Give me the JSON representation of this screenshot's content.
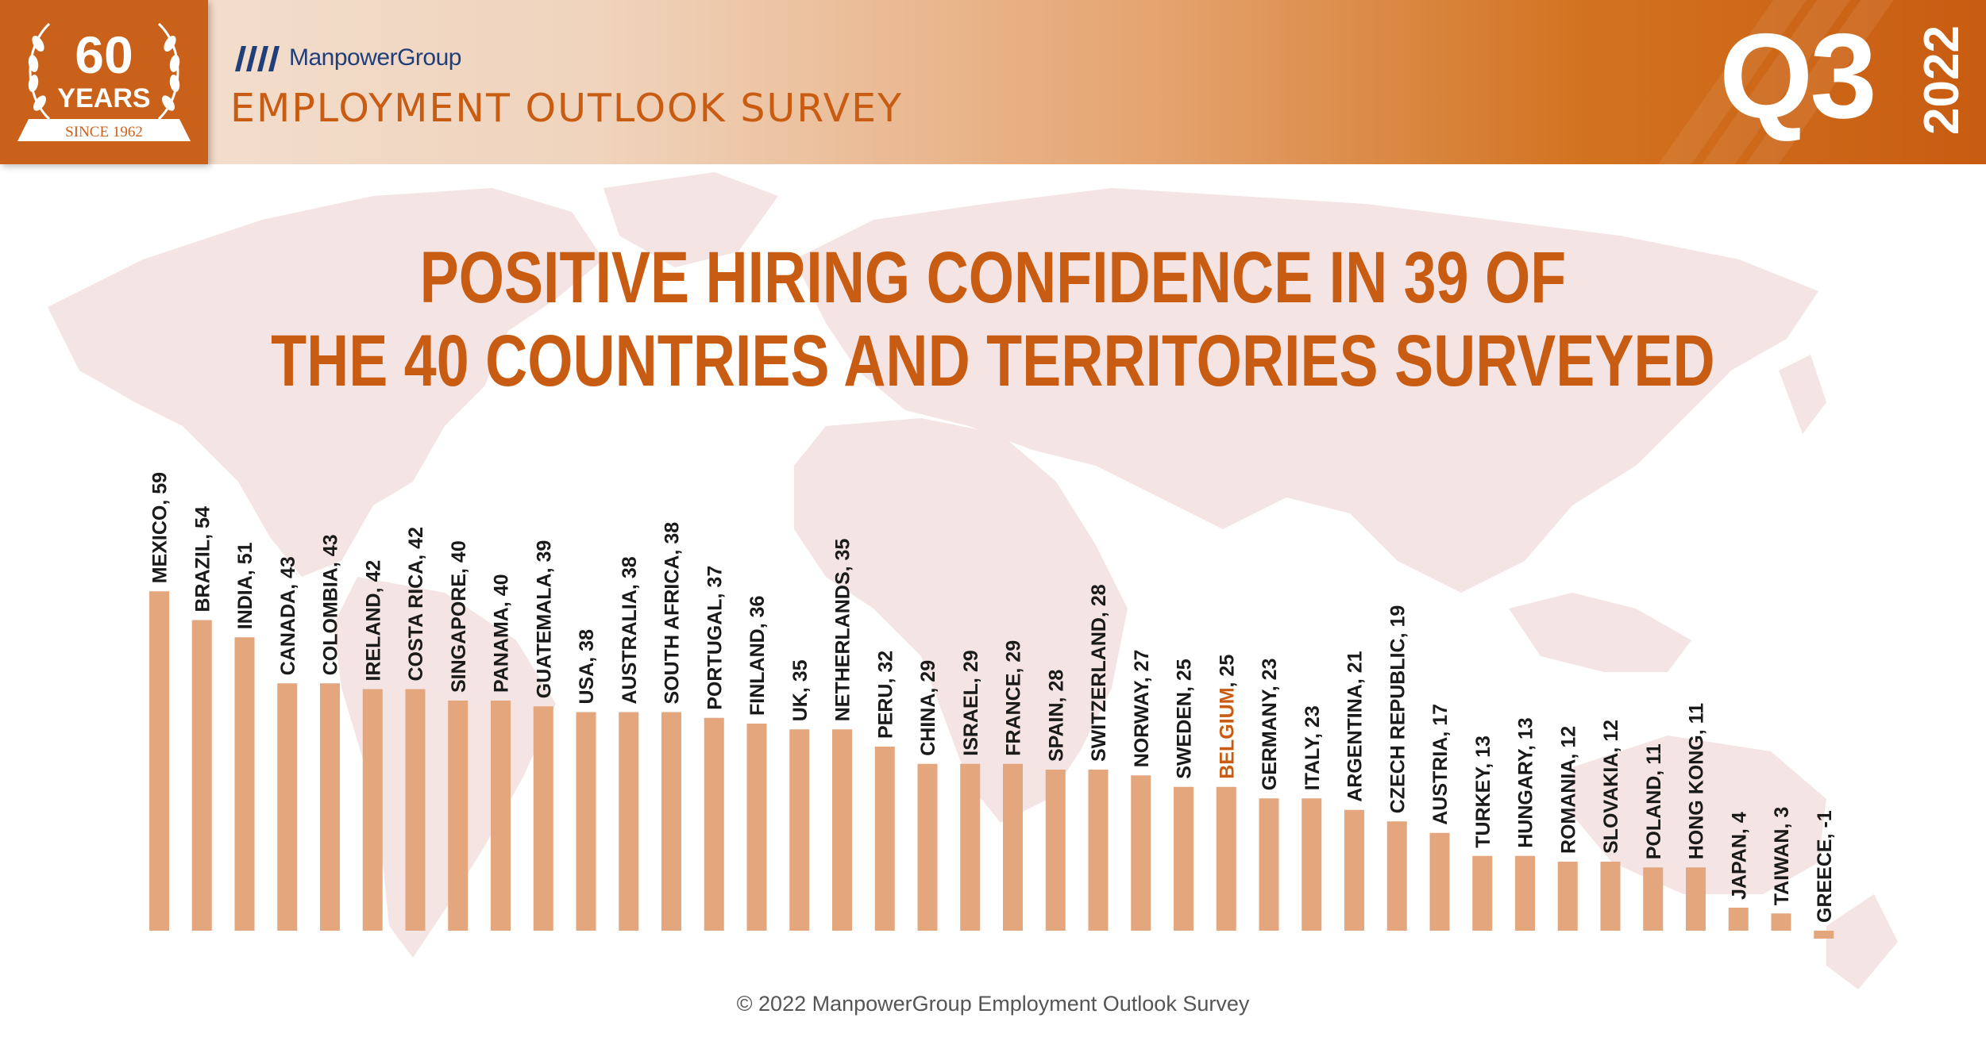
{
  "header": {
    "badge_number": "60",
    "badge_years": "YEARS",
    "badge_since": "SINCE 1962",
    "brand": "ManpowerGroup",
    "survey_title": "EMPLOYMENT OUTLOOK SURVEY",
    "quarter": "Q3",
    "year": "2022"
  },
  "colors": {
    "accent": "#c85c12",
    "bar": "#e4a67c",
    "highlight": "#c85c12",
    "map": "#f4e4e4"
  },
  "footer": "© 2022 ManpowerGroup Employment Outlook Survey",
  "chart_data": {
    "type": "bar",
    "title_lines": [
      "POSITIVE HIRING CONFIDENCE IN 39 OF",
      "THE 40 COUNTRIES AND TERRITORIES SURVEYED"
    ],
    "highlight": "BELGIUM",
    "categories": [
      "MEXICO",
      "BRAZIL",
      "INDIA",
      "CANADA",
      "COLOMBIA",
      "IRELAND",
      "COSTA RICA",
      "SINGAPORE",
      "PANAMA",
      "GUATEMALA",
      "USA",
      "AUSTRALIA",
      "SOUTH AFRICA",
      "PORTUGAL",
      "FINLAND",
      "UK",
      "NETHERLANDS",
      "PERU",
      "CHINA",
      "ISRAEL",
      "FRANCE",
      "SPAIN",
      "SWITZERLAND",
      "NORWAY",
      "SWEDEN",
      "BELGIUM",
      "GERMANY",
      "ITALY",
      "ARGENTINA",
      "CZECH REPUBLIC",
      "AUSTRIA",
      "TURKEY",
      "HUNGARY",
      "ROMANIA",
      "SLOVAKIA",
      "POLAND",
      "HONG KONG",
      "JAPAN",
      "TAIWAN",
      "GREECE"
    ],
    "values": [
      59,
      54,
      51,
      43,
      43,
      42,
      42,
      40,
      40,
      39,
      38,
      38,
      38,
      37,
      36,
      35,
      35,
      32,
      29,
      29,
      29,
      28,
      28,
      27,
      25,
      25,
      23,
      23,
      21,
      19,
      17,
      13,
      13,
      12,
      12,
      11,
      11,
      4,
      3,
      -1
    ],
    "labels": [
      "MEXICO, 59",
      "BRAZIL, 54",
      "INDIA, 51",
      "CANADA, 43",
      "COLOMBIA, 43",
      "IRELAND, 42",
      "COSTA RICA, 42",
      "SINGAPORE, 40",
      "PANAMA, 40",
      "GUATEMALA, 39",
      "USA, 38",
      "AUSTRALIA, 38",
      "SOUTH AFRICA, 38",
      "PORTUGAL, 37",
      "FINLAND, 36",
      "UK, 35",
      "NETHERLANDS, 35",
      "PERU, 32",
      "CHINA, 29",
      "ISRAEL, 29",
      "FRANCE, 29",
      "SPAIN, 28",
      "SWITZERLAND, 28",
      "NORWAY, 27",
      "SWEDEN, 25",
      "BELGIUM, 25",
      "GERMANY, 23",
      "ITALY, 23",
      "ARGENTINA, 21",
      "CZECH REPUBLIC, 19",
      "AUSTRIA, 17",
      "TURKEY, 13",
      "HUNGARY, 13",
      "ROMANIA, 12",
      "SLOVAKIA, 12",
      "POLAND, 11",
      "HONG KONG, 11",
      "JAPAN, 4",
      "TAIWAN, 3",
      "GREECE, -1"
    ],
    "grid": false
  }
}
